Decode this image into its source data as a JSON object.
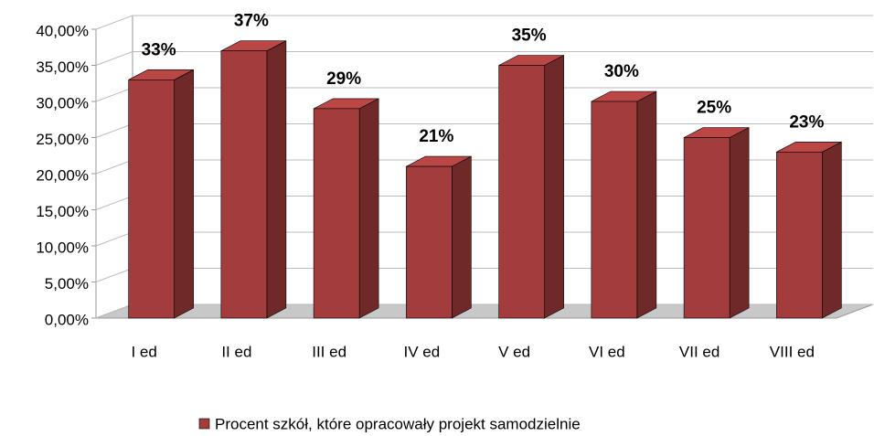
{
  "chart_data": {
    "type": "bar3d",
    "categories": [
      "I ed",
      "II ed",
      "III ed",
      "IV ed",
      "V ed",
      "VI ed",
      "VII ed",
      "VIII ed"
    ],
    "series": [
      {
        "name": "Procent szkół, które opracowały projekt samodzielnie",
        "color": "#a33d3d",
        "values": [
          33,
          37,
          29,
          21,
          35,
          30,
          25,
          23
        ],
        "value_labels": [
          "33%",
          "37%",
          "29%",
          "21%",
          "35%",
          "30%",
          "25%",
          "23%"
        ]
      }
    ],
    "ylim": [
      0,
      40
    ],
    "yticks": [
      {
        "value": 0,
        "label": "0,00%"
      },
      {
        "value": 5,
        "label": "5,00%"
      },
      {
        "value": 10,
        "label": "10,00%"
      },
      {
        "value": 15,
        "label": "15,00%"
      },
      {
        "value": 20,
        "label": "20,00%"
      },
      {
        "value": 25,
        "label": "25,00%"
      },
      {
        "value": 30,
        "label": "30,00%"
      },
      {
        "value": 35,
        "label": "35,00%"
      },
      {
        "value": 40,
        "label": "40,00%"
      }
    ],
    "grid": true,
    "legend": "bottom"
  }
}
